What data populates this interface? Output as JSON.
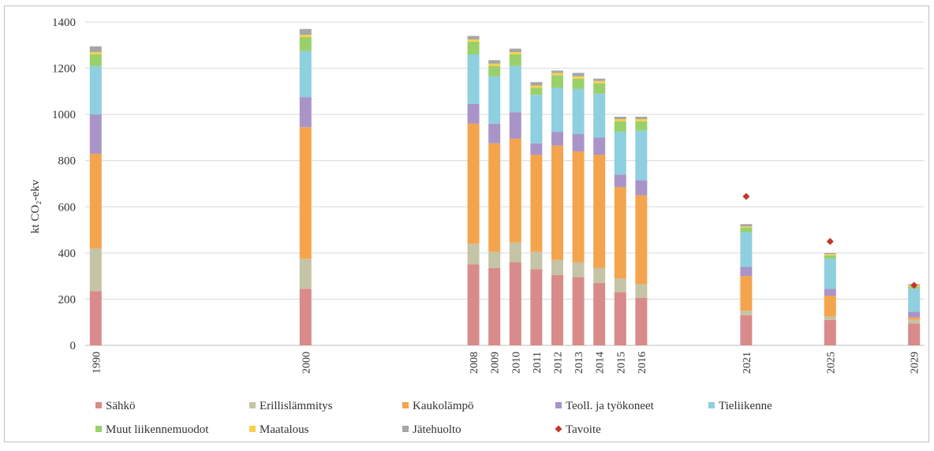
{
  "chart_data": {
    "type": "bar",
    "stacked": true,
    "title": "",
    "xlabel": "",
    "ylabel": "kt CO₂-ekv",
    "ylim": [
      0,
      1400
    ],
    "yticks": [
      0,
      200,
      400,
      600,
      800,
      1000,
      1200,
      1400
    ],
    "grid": true,
    "legend_position": "bottom",
    "categories": [
      "1990",
      "2000",
      "2008",
      "2009",
      "2010",
      "2011",
      "2012",
      "2013",
      "2014",
      "2015",
      "2016",
      "2021",
      "2025",
      "2029"
    ],
    "series": [
      {
        "name": "Sähkö",
        "color": "#d98a8a",
        "values": [
          235,
          245,
          350,
          335,
          360,
          330,
          305,
          295,
          270,
          230,
          205,
          130,
          110,
          95
        ]
      },
      {
        "name": "Erillislämmitys",
        "color": "#c4c4a6",
        "values": [
          185,
          130,
          90,
          70,
          85,
          75,
          65,
          65,
          65,
          60,
          60,
          20,
          15,
          15
        ]
      },
      {
        "name": "Kaukolämpö",
        "color": "#f5a44e",
        "values": [
          410,
          570,
          520,
          470,
          450,
          420,
          495,
          480,
          490,
          395,
          385,
          150,
          90,
          10
        ]
      },
      {
        "name": "Teoll. ja työkoneet",
        "color": "#a994c8",
        "values": [
          170,
          130,
          85,
          85,
          115,
          50,
          60,
          75,
          75,
          55,
          65,
          40,
          30,
          25
        ]
      },
      {
        "name": "Tieliikenne",
        "color": "#8ecfe0",
        "values": [
          210,
          200,
          215,
          205,
          200,
          210,
          190,
          195,
          190,
          185,
          215,
          150,
          130,
          100
        ]
      },
      {
        "name": "Muut liikennemuodot",
        "color": "#9ad06a",
        "values": [
          50,
          60,
          55,
          45,
          50,
          30,
          55,
          45,
          45,
          45,
          40,
          20,
          15,
          10
        ]
      },
      {
        "name": "Maatalous",
        "color": "#f7d050",
        "values": [
          10,
          10,
          10,
          10,
          10,
          10,
          10,
          10,
          10,
          10,
          10,
          5,
          5,
          5
        ]
      },
      {
        "name": "Jätehuolto",
        "color": "#a6a6a6",
        "values": [
          25,
          25,
          15,
          15,
          15,
          15,
          10,
          15,
          10,
          10,
          10,
          10,
          5,
          5
        ]
      }
    ],
    "target": {
      "name": "Tavoite",
      "color": "#c0392b",
      "points": [
        {
          "x": "2021",
          "y": 645
        },
        {
          "x": "2025",
          "y": 450
        },
        {
          "x": "2029",
          "y": 260
        }
      ]
    }
  }
}
